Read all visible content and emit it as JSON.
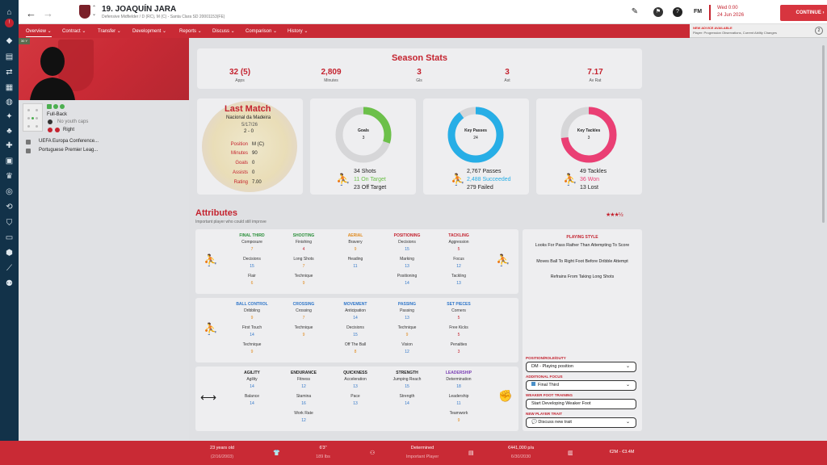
{
  "header": {
    "title": "19. JOAQUÍN JARA",
    "subtitle": "Defensive Midfielder / D (RC), M (C) - Santa Clara SD 20001153(FE)",
    "fm_label": "FM",
    "day": "Wed 0:00",
    "date": "24 Jun 2026",
    "continue": "CONTINUE"
  },
  "tabs": [
    "Overview",
    "Contract",
    "Transfer",
    "Development",
    "Reports",
    "Discuss",
    "Comparison",
    "History"
  ],
  "advice": {
    "title": "NEW ADVICE AVAILABLE",
    "text": "Player: Progression Observations, Current Ability Changes",
    "count": "2"
  },
  "profile": {
    "tag": "30 Y",
    "role": "Full-Back",
    "youth": "No youth caps",
    "foot": "Right",
    "comp1": "UEFA Europa Conference...",
    "comp2": "Portuguese Premier Leag..."
  },
  "season": {
    "title": "Season Stats",
    "stats": [
      {
        "v": "32 (5)",
        "l": "Apps"
      },
      {
        "v": "2,809",
        "l": "Minutes"
      },
      {
        "v": "3",
        "l": "Gls"
      },
      {
        "v": "3",
        "l": "Ast"
      },
      {
        "v": "7.17",
        "l": "Av Rat"
      }
    ]
  },
  "last_match": {
    "title": "Last Match",
    "opponent": "Nacional da Madeira",
    "date": "5/17/26",
    "score": "2 - 0",
    "rows": [
      {
        "l": "Position",
        "v": "M (C)"
      },
      {
        "l": "Minutes",
        "v": "90"
      },
      {
        "l": "Goals",
        "v": "0"
      },
      {
        "l": "Assists",
        "v": "0"
      },
      {
        "l": "Rating",
        "v": "7.00"
      }
    ]
  },
  "goals_card": {
    "label": "Goals",
    "value": "3",
    "shots": "34",
    "shots_l": "Shots",
    "on": "11",
    "on_l": "On Target",
    "off": "23",
    "off_l": "Off Target",
    "fraction": 0.3
  },
  "passes_card": {
    "label": "Key Passes",
    "value": "24",
    "passes": "2,767",
    "passes_l": "Passes",
    "succ": "2,488",
    "succ_l": "Succeeded",
    "fail": "279",
    "fail_l": "Failed",
    "fraction": 0.9
  },
  "tackles_card": {
    "label": "Key Tackles",
    "value": "3",
    "tackles": "49",
    "tackles_l": "Tackles",
    "won": "36",
    "won_l": "Won",
    "lost": "13",
    "lost_l": "Lost",
    "fraction": 0.73
  },
  "attributes": {
    "title": "Attributes",
    "subtitle": "Important player who could still improve",
    "box1": [
      {
        "h": "FINAL THIRD",
        "c": "#2a8f3a",
        "rows": [
          [
            "Composure",
            "7"
          ],
          [
            "Decisions",
            "15"
          ],
          [
            "Flair",
            "6"
          ]
        ]
      },
      {
        "h": "SHOOTING",
        "c": "#2a8f3a",
        "rows": [
          [
            "Finishing",
            "4"
          ],
          [
            "Long Shots",
            "7"
          ],
          [
            "Technique",
            "9"
          ]
        ]
      },
      {
        "h": "AERIAL",
        "c": "#e08a1d",
        "rows": [
          [
            "Bravery",
            "9"
          ],
          [
            "Heading",
            "11"
          ]
        ]
      },
      {
        "h": "POSITIONING",
        "c": "#c4232f",
        "rows": [
          [
            "Decisions",
            "15"
          ],
          [
            "Marking",
            "13"
          ],
          [
            "Positioning",
            "14"
          ]
        ]
      },
      {
        "h": "TACKLING",
        "c": "#c4232f",
        "rows": [
          [
            "Aggression",
            "5"
          ],
          [
            "Focus",
            "12"
          ],
          [
            "Tackling",
            "13"
          ]
        ]
      }
    ],
    "box2": [
      {
        "h": "BALL CONTROL",
        "c": "#2f76c9",
        "rows": [
          [
            "Dribbling",
            "9"
          ],
          [
            "First Touch",
            "14"
          ],
          [
            "Technique",
            "9"
          ]
        ]
      },
      {
        "h": "CROSSING",
        "c": "#2f76c9",
        "rows": [
          [
            "Crossing",
            "7"
          ],
          [
            "Technique",
            "9"
          ]
        ]
      },
      {
        "h": "MOVEMENT",
        "c": "#2f76c9",
        "rows": [
          [
            "Anticipation",
            "14"
          ],
          [
            "Decisions",
            "15"
          ],
          [
            "Off The Ball",
            "8"
          ]
        ]
      },
      {
        "h": "PASSING",
        "c": "#2f76c9",
        "rows": [
          [
            "Passing",
            "13"
          ],
          [
            "Technique",
            "9"
          ],
          [
            "Vision",
            "12"
          ]
        ]
      },
      {
        "h": "SET PIECES",
        "c": "#2f76c9",
        "rows": [
          [
            "Corners",
            "5"
          ],
          [
            "Free Kicks",
            "5"
          ],
          [
            "Penalties",
            "3"
          ]
        ]
      }
    ],
    "box3": [
      {
        "h": "AGILITY",
        "c": "#222",
        "rows": [
          [
            "Agility",
            "14"
          ],
          [
            "Balance",
            "14"
          ]
        ]
      },
      {
        "h": "ENDURANCE",
        "c": "#222",
        "rows": [
          [
            "Fitness",
            "12"
          ],
          [
            "Stamina",
            "16"
          ],
          [
            "Work Rate",
            "12"
          ]
        ]
      },
      {
        "h": "QUICKNESS",
        "c": "#222",
        "rows": [
          [
            "Acceleration",
            "13"
          ],
          [
            "Pace",
            "13"
          ]
        ]
      },
      {
        "h": "STRENGTH",
        "c": "#222",
        "rows": [
          [
            "Jumping Reach",
            "15"
          ],
          [
            "Strength",
            "14"
          ]
        ]
      },
      {
        "h": "LEADERSHIP",
        "c": "#7a3fb4",
        "rows": [
          [
            "Determination",
            "18"
          ],
          [
            "Leadership",
            "11"
          ],
          [
            "Teamwork",
            "9"
          ]
        ]
      }
    ]
  },
  "playing_style": {
    "title": "PLAYING STYLE",
    "lines": [
      "Looks For Pass Rather Than Attempting To Score",
      "Moves Ball To Right Foot Before Dribble Attempt",
      "Refrains From Taking Long Shots"
    ],
    "prd_l": "POSITION/ROLE/DUTY",
    "prd": "DM - Playing position",
    "focus_l": "ADDITIONAL FOCUS",
    "focus": "Final Third",
    "weak_l": "WEAKER FOOT TRAINING",
    "weak": "Start Developing Weaker Foot",
    "trait_l": "NEW PLAYER TRAIT",
    "trait": "Discuss new trait"
  },
  "footer": {
    "age": "23 years old",
    "dob": "(2/16/2003)",
    "height": "6'3\"",
    "weight": "189 lbs",
    "personality": "Determined",
    "status": "Important Player",
    "wage": "€441,000 p/a",
    "expiry": "6/30/2030",
    "value": "€2M - €3.4M"
  }
}
